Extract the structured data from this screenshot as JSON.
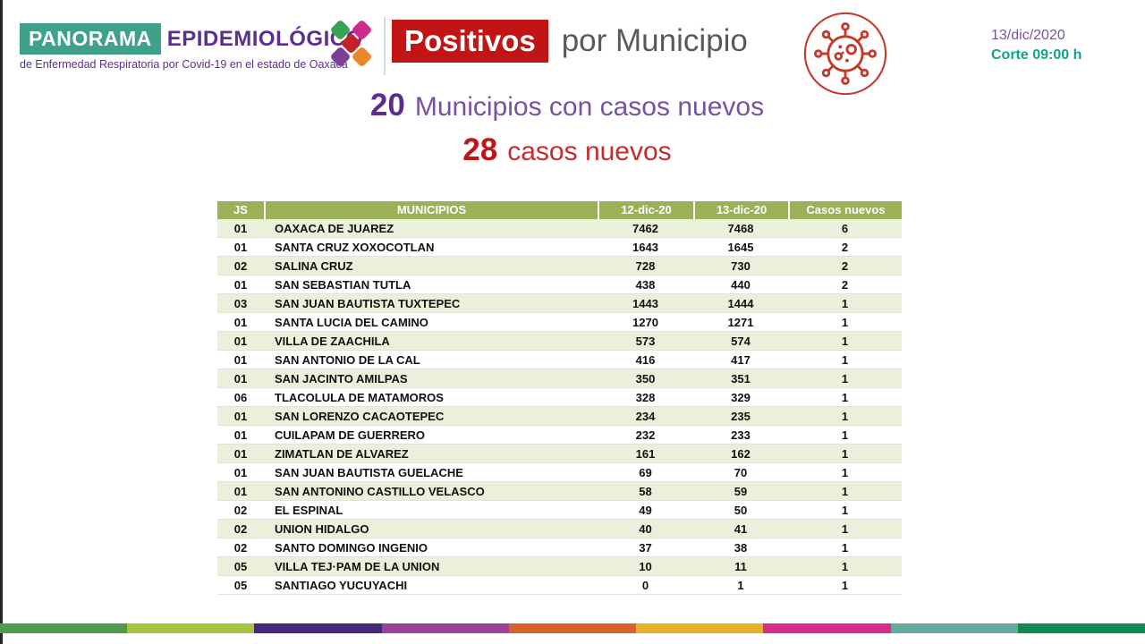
{
  "header": {
    "brand": {
      "title_box": "PANORAMA",
      "title_rest": "EPIDEMIOLÓGICO",
      "subtitle": "de Enfermedad Respiratoria por Covid-19 en el estado de Oaxaca"
    },
    "page_title": {
      "highlight": "Positivos",
      "rest": "por Municipio"
    },
    "date": "13/dic/2020",
    "cutoff": "Corte 09:00 h"
  },
  "headline": {
    "municipalities_count": "20",
    "municipalities_label": "Municipios con casos nuevos",
    "cases_count": "28",
    "cases_label": "casos nuevos"
  },
  "table": {
    "columns": [
      "JS",
      "MUNICIPIOS",
      "12-dic-20",
      "13-dic-20",
      "Casos nuevos"
    ],
    "rows": [
      [
        "01",
        "OAXACA DE JUAREZ",
        "7462",
        "7468",
        "6"
      ],
      [
        "01",
        "SANTA CRUZ XOXOCOTLAN",
        "1643",
        "1645",
        "2"
      ],
      [
        "02",
        "SALINA CRUZ",
        "728",
        "730",
        "2"
      ],
      [
        "01",
        "SAN SEBASTIAN TUTLA",
        "438",
        "440",
        "2"
      ],
      [
        "03",
        "SAN JUAN BAUTISTA TUXTEPEC",
        "1443",
        "1444",
        "1"
      ],
      [
        "01",
        "SANTA LUCIA DEL CAMINO",
        "1270",
        "1271",
        "1"
      ],
      [
        "01",
        "VILLA DE ZAACHILA",
        "573",
        "574",
        "1"
      ],
      [
        "01",
        "SAN ANTONIO DE LA CAL",
        "416",
        "417",
        "1"
      ],
      [
        "01",
        "SAN JACINTO AMILPAS",
        "350",
        "351",
        "1"
      ],
      [
        "06",
        "TLACOLULA DE MATAMOROS",
        "328",
        "329",
        "1"
      ],
      [
        "01",
        "SAN LORENZO CACAOTEPEC",
        "234",
        "235",
        "1"
      ],
      [
        "01",
        "CUILAPAM DE GUERRERO",
        "232",
        "233",
        "1"
      ],
      [
        "01",
        "ZIMATLAN DE ALVAREZ",
        "161",
        "162",
        "1"
      ],
      [
        "01",
        "SAN JUAN BAUTISTA GUELACHE",
        "69",
        "70",
        "1"
      ],
      [
        "01",
        "SAN ANTONINO CASTILLO VELASCO",
        "58",
        "59",
        "1"
      ],
      [
        "02",
        "EL ESPINAL",
        "49",
        "50",
        "1"
      ],
      [
        "02",
        "UNION HIDALGO",
        "40",
        "41",
        "1"
      ],
      [
        "02",
        "SANTO DOMINGO INGENIO",
        "37",
        "38",
        "1"
      ],
      [
        "05",
        "VILLA TEJ·PAM DE LA UNION",
        "10",
        "11",
        "1"
      ],
      [
        "05",
        "SANTIAGO YUCUYACHI",
        "0",
        "1",
        "1"
      ]
    ]
  },
  "footer_bar": {
    "colors": [
      "#4E9B4E",
      "#A6C43F",
      "#46287E",
      "#9C4397",
      "#D8622A",
      "#E5B02A",
      "#D62D8C",
      "#62AC9F",
      "#0F8A52"
    ]
  },
  "colors": {
    "brand_teal": "#3FA18C",
    "brand_purple": "#5B2F91",
    "title_red": "#C21414",
    "title_gray": "#58595B",
    "headline_purple": "#7A50A5",
    "headline_red": "#C62E2E",
    "date_purple": "#7B52A8",
    "cutoff_teal": "#12A28B",
    "table_header_green": "#9AB158",
    "table_row_green": "#EAF0DA",
    "virus_red": "#C23B2E"
  }
}
